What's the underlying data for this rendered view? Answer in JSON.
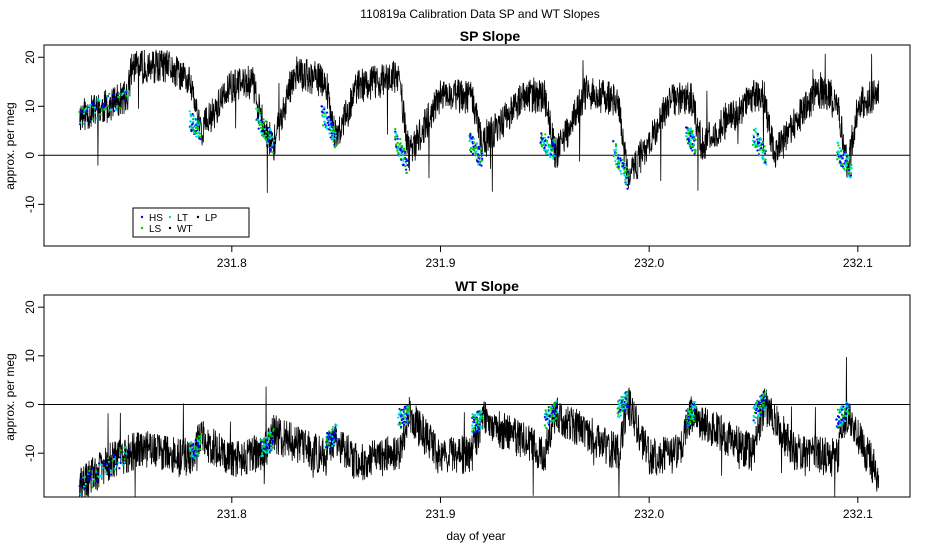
{
  "figure": {
    "suptitle": "110819a   Calibration Data SP and WT Slopes"
  },
  "legend": {
    "entries": [
      {
        "label": "HS",
        "color": "#0000ff"
      },
      {
        "label": "LS",
        "color": "#00cc00"
      },
      {
        "label": "LT",
        "color": "#00dddd"
      },
      {
        "label": "WT",
        "color": "#000000"
      },
      {
        "label": "LP",
        "color": "#000000"
      }
    ]
  },
  "chart_data": [
    {
      "type": "line",
      "title": "SP Slope",
      "xlabel": "",
      "ylabel": "approx. per meg",
      "xlim": [
        231.71,
        232.125
      ],
      "ylim": [
        -18.5,
        22.5
      ],
      "xticks": [
        231.8,
        231.9,
        232.0,
        232.1
      ],
      "xtick_labels": [
        "231.8",
        "231.9",
        "232.0",
        "232.1"
      ],
      "yticks": [
        -10,
        0,
        10,
        20
      ],
      "ytick_labels": [
        "-10",
        "0",
        "10",
        "20"
      ],
      "hline": 0,
      "legend_position": "bottom-left",
      "base_trace": {
        "x": [
          231.727,
          231.74,
          231.75,
          231.752,
          231.77,
          231.78,
          231.785,
          231.8,
          231.81,
          231.815,
          231.82,
          231.83,
          231.845,
          231.85,
          231.86,
          231.88,
          231.885,
          231.9,
          231.915,
          231.92,
          231.94,
          231.95,
          231.955,
          231.97,
          231.985,
          231.99,
          232.01,
          232.02,
          232.025,
          232.05,
          232.055,
          232.06,
          232.08,
          232.09,
          232.095,
          232.1,
          232.11
        ],
        "y": [
          8,
          10,
          12,
          18,
          18,
          15,
          5,
          14,
          15,
          6,
          2,
          17,
          15,
          3,
          14,
          16,
          0,
          12,
          12,
          2,
          12,
          12,
          0,
          13,
          11,
          -5,
          11,
          12,
          2,
          12,
          12,
          0,
          13,
          12,
          -3,
          10,
          13
        ]
      },
      "calibration_windows": [
        {
          "x": [
            231.727,
            231.75
          ],
          "y": [
            8,
            12
          ]
        },
        {
          "x": [
            231.78,
            231.785
          ],
          "y": [
            7,
            5
          ]
        },
        {
          "x": [
            231.812,
            231.82
          ],
          "y": [
            8,
            2
          ]
        },
        {
          "x": [
            231.843,
            231.85
          ],
          "y": [
            9,
            3
          ]
        },
        {
          "x": [
            231.878,
            231.884
          ],
          "y": [
            4,
            -2
          ]
        },
        {
          "x": [
            231.914,
            231.92
          ],
          "y": [
            3,
            -1
          ]
        },
        {
          "x": [
            231.948,
            231.955
          ],
          "y": [
            3,
            1
          ]
        },
        {
          "x": [
            231.983,
            231.99
          ],
          "y": [
            1,
            -5
          ]
        },
        {
          "x": [
            232.018,
            232.022
          ],
          "y": [
            5,
            2
          ]
        },
        {
          "x": [
            232.05,
            232.056
          ],
          "y": [
            4,
            0
          ]
        },
        {
          "x": [
            232.09,
            232.097
          ],
          "y": [
            1,
            -3
          ]
        }
      ]
    },
    {
      "type": "line",
      "title": "WT Slope",
      "xlabel": "day of year",
      "ylabel": "approx. per meg",
      "xlim": [
        231.71,
        232.125
      ],
      "ylim": [
        -19,
        22.5
      ],
      "xticks": [
        231.8,
        231.9,
        232.0,
        232.1
      ],
      "xtick_labels": [
        "231.8",
        "231.9",
        "232.0",
        "232.1"
      ],
      "yticks": [
        -10,
        0,
        10,
        20
      ],
      "ytick_labels": [
        "-10",
        "0",
        "10",
        "20"
      ],
      "hline": 0,
      "base_trace": {
        "x": [
          231.727,
          231.74,
          231.75,
          231.76,
          231.78,
          231.785,
          231.8,
          231.815,
          231.82,
          231.845,
          231.85,
          231.86,
          231.88,
          231.885,
          231.9,
          231.915,
          231.92,
          231.95,
          231.955,
          231.985,
          231.99,
          232.0,
          232.015,
          232.02,
          232.05,
          232.055,
          232.07,
          232.09,
          232.095,
          232.11
        ],
        "y": [
          -17,
          -12,
          -10,
          -9,
          -11,
          -7,
          -11,
          -10,
          -6,
          -11,
          -7,
          -12,
          -10,
          -2,
          -11,
          -10,
          -3,
          -10,
          -2,
          -10,
          0,
          -11,
          -10,
          -2,
          -10,
          0,
          -10,
          -11,
          -2,
          -15
        ]
      },
      "calibration_windows": [
        {
          "x": [
            231.727,
            231.75
          ],
          "y": [
            -17,
            -10
          ]
        },
        {
          "x": [
            231.78,
            231.785
          ],
          "y": [
            -10,
            -8
          ]
        },
        {
          "x": [
            231.814,
            231.82
          ],
          "y": [
            -9,
            -7
          ]
        },
        {
          "x": [
            231.845,
            231.85
          ],
          "y": [
            -8,
            -6
          ]
        },
        {
          "x": [
            231.88,
            231.885
          ],
          "y": [
            -3,
            -2
          ]
        },
        {
          "x": [
            231.915,
            231.92
          ],
          "y": [
            -4,
            -3
          ]
        },
        {
          "x": [
            231.95,
            231.956
          ],
          "y": [
            -3,
            -1
          ]
        },
        {
          "x": [
            231.985,
            231.99
          ],
          "y": [
            -1,
            1
          ]
        },
        {
          "x": [
            232.018,
            232.022
          ],
          "y": [
            -3,
            -1
          ]
        },
        {
          "x": [
            232.05,
            232.056
          ],
          "y": [
            -2,
            1
          ]
        },
        {
          "x": [
            232.09,
            232.096
          ],
          "y": [
            -3,
            -1
          ]
        }
      ]
    }
  ]
}
